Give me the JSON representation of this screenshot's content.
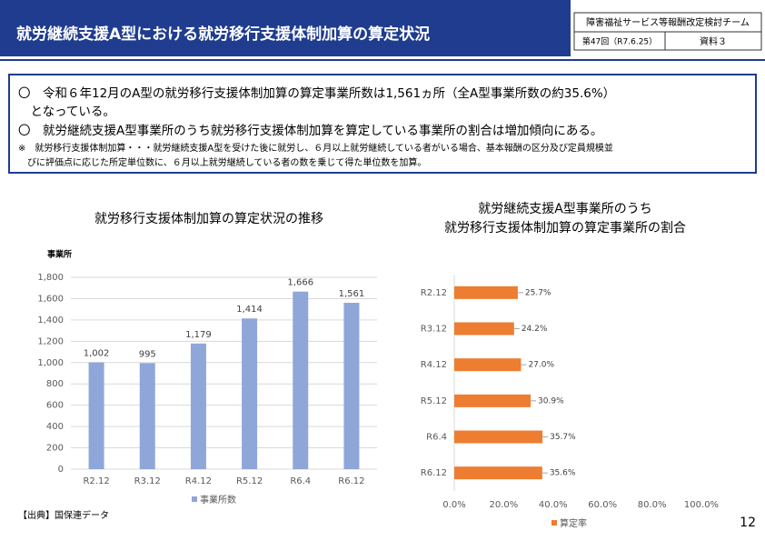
{
  "header": {
    "title": "就労継続支援A型における就労移行支援体制加算の算定状況",
    "team": "障害福祉サービス等報酬改定検討チーム",
    "meeting": "第47回（R7.6.25）",
    "doc": "資料３"
  },
  "bullets": [
    "〇　令和６年12月のA型の就労移行支援体制加算の算定事業所数は1,561ヵ所（全A型事業所数の約35.6%）",
    "　となっている。",
    "〇　就労継続支援A型事業所のうち就労移行支援体制加算を算定している事業所の割合は増加傾向にある。",
    "※　就労移行支援体制加算・・・就労継続支援A型を受けた後に就労し、６月以上就労継続している者がいる場合、基本報酬の区分及び定員規模並",
    "　びに評価点に応じた所定単位数に、６月以上就労継続している者の数を乗じて得た単位数を加算。"
  ],
  "source": "【出典】国保連データ",
  "page_number": "12",
  "chart_data": [
    {
      "type": "bar",
      "title": "就労移行支援体制加算の算定状況の推移",
      "y_label": "事業所",
      "categories": [
        "R2.12",
        "R3.12",
        "R4.12",
        "R5.12",
        "R6.4",
        "R6.12"
      ],
      "series": [
        {
          "name": "事業所数",
          "color": "#8fa6d8",
          "values": [
            1002,
            995,
            1179,
            1414,
            1666,
            1561
          ],
          "value_labels": [
            "1,002",
            "995",
            "1,179",
            "1,414",
            "1,666",
            "1,561"
          ]
        }
      ],
      "ylim": [
        0,
        1800
      ],
      "yticks": [
        0,
        200,
        400,
        600,
        800,
        {
          "value": 1000,
          "label": "1,000"
        },
        {
          "value": 1200,
          "label": "1,200"
        },
        {
          "value": 1400,
          "label": "1,400"
        },
        {
          "value": 1600,
          "label": "1,600"
        },
        {
          "value": 1800,
          "label": "1,800"
        }
      ],
      "grid": true
    },
    {
      "type": "barh",
      "title": [
        "就労継続支援A型事業所のうち",
        "就労移行支援体制加算の算定事業所の割合"
      ],
      "categories": [
        "R2.12",
        "R3.12",
        "R4.12",
        "R5.12",
        "R6.4",
        "R6.12"
      ],
      "series": [
        {
          "name": "算定率",
          "color": "#ed7d31",
          "values": [
            25.7,
            24.2,
            27.0,
            30.9,
            35.7,
            35.6
          ],
          "value_labels": [
            "25.7%",
            "24.2%",
            "27.0%",
            "30.9%",
            "35.7%",
            "35.6%"
          ]
        }
      ],
      "xlim": [
        0,
        100
      ],
      "xticks": [
        {
          "value": 0,
          "label": "0.0%"
        },
        {
          "value": 20,
          "label": "20.0%"
        },
        {
          "value": 40,
          "label": "40.0%"
        },
        {
          "value": 60,
          "label": "60.0%"
        },
        {
          "value": 80,
          "label": "80.0%"
        },
        {
          "value": 100,
          "label": "100.0%"
        }
      ],
      "grid": false
    }
  ]
}
